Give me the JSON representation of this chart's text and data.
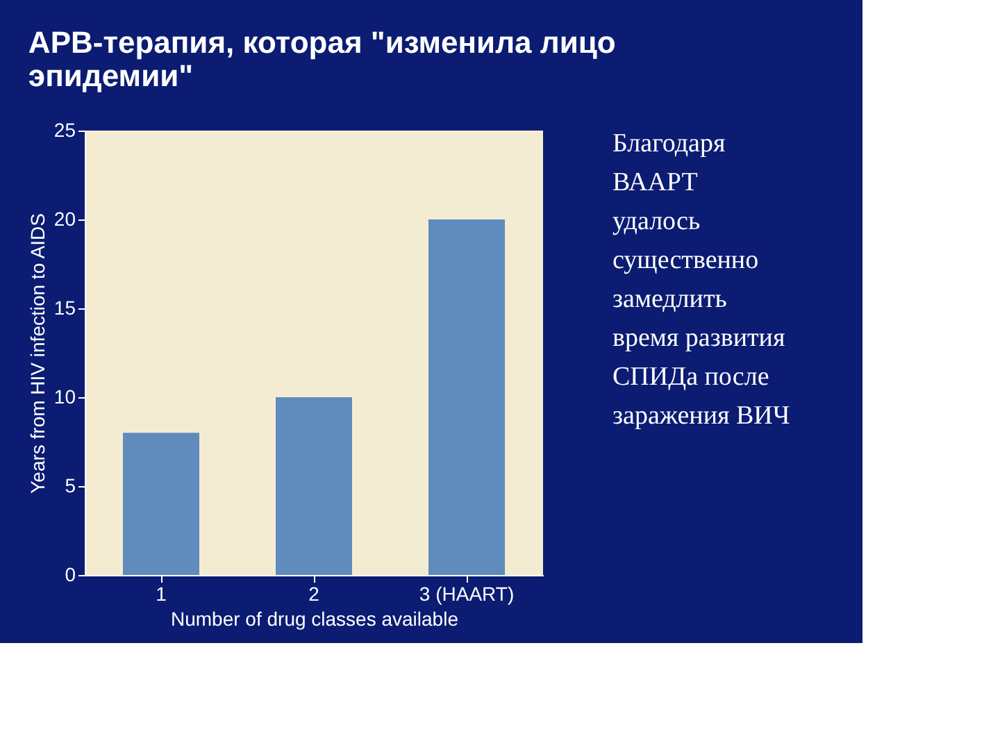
{
  "chart_data": {
    "type": "bar",
    "title": "АРВ-терапия, которая \"изменила лицо\nэпидемии\"",
    "categories": [
      "1",
      "2",
      "3 (HAART)"
    ],
    "values": [
      8,
      10,
      20
    ],
    "color": "#5f8bbd",
    "xlabel": "Number of drug classes available",
    "ylabel": "Years from HIV infection to AIDS",
    "ylim": [
      0,
      25
    ],
    "yticks": [
      0,
      5,
      10,
      15,
      20,
      25
    ],
    "grid": false,
    "annotations": [
      "Благодаря\nВААРТ\nудалось\nсущественно\nзамедлить\nвремя развития\nСПИДа после\nзаражения ВИЧ"
    ]
  }
}
